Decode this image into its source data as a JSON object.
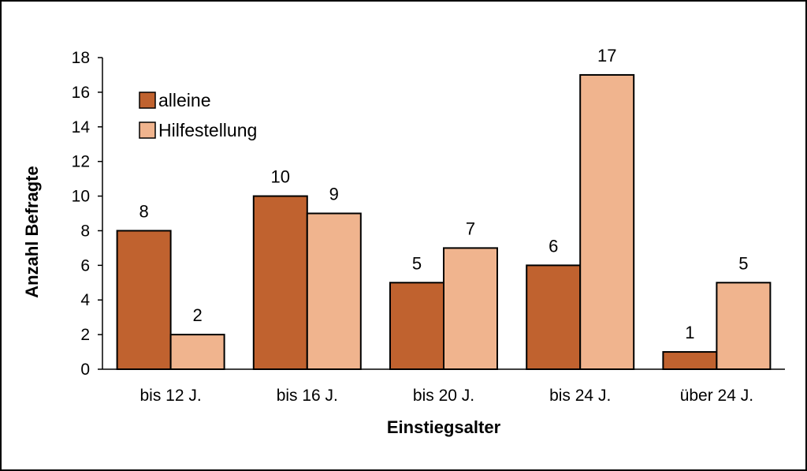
{
  "chart_data": {
    "type": "bar",
    "title": "",
    "xlabel": "Einstiegsalter",
    "ylabel": "Anzahl Befragte",
    "categories": [
      "bis 12 J.",
      "bis 16 J.",
      "bis 20 J.",
      "bis 24 J.",
      "über 24 J."
    ],
    "series": [
      {
        "name": "alleine",
        "color": "#C0622F",
        "values": [
          8,
          10,
          5,
          6,
          1
        ]
      },
      {
        "name": "Hilfestellung",
        "color": "#F0B48E",
        "values": [
          2,
          9,
          7,
          17,
          5
        ]
      }
    ],
    "ylim": [
      0,
      18
    ],
    "yticks": [
      0,
      2,
      4,
      6,
      8,
      10,
      12,
      14,
      16,
      18
    ],
    "data_labels": true,
    "grid": false,
    "legend_position": "top-left"
  }
}
